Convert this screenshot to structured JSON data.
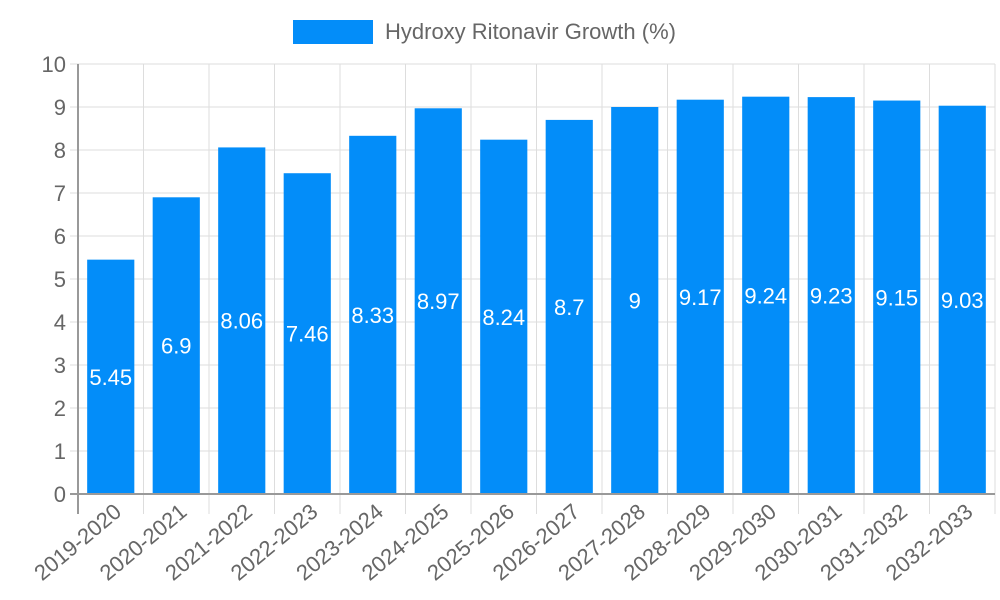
{
  "legend": {
    "label": "Hydroxy Ritonavir Growth (%)",
    "color": "#038df9"
  },
  "colors": {
    "bar": "#038df9",
    "grid": "#dddddd",
    "axis": "#999999",
    "tick_text": "#666666",
    "value_text": "#ffffff"
  },
  "chart_data": {
    "type": "bar",
    "title": "",
    "xlabel": "",
    "ylabel": "",
    "ylim": [
      0,
      10
    ],
    "y_ticks": [
      0,
      1,
      2,
      3,
      4,
      5,
      6,
      7,
      8,
      9,
      10
    ],
    "grid": true,
    "legend_position": "top",
    "categories": [
      "2019-2020",
      "2020-2021",
      "2021-2022",
      "2022-2023",
      "2023-2024",
      "2024-2025",
      "2025-2026",
      "2026-2027",
      "2027-2028",
      "2028-2029",
      "2029-2030",
      "2030-2031",
      "2031-2032",
      "2032-2033"
    ],
    "series": [
      {
        "name": "Hydroxy Ritonavir Growth (%)",
        "values": [
          5.45,
          6.9,
          8.06,
          7.46,
          8.33,
          8.97,
          8.24,
          8.7,
          9,
          9.17,
          9.24,
          9.23,
          9.15,
          9.03
        ]
      }
    ],
    "data_labels": [
      "5.45",
      "6.9",
      "8.06",
      "7.46",
      "8.33",
      "8.97",
      "8.24",
      "8.7",
      "9",
      "9.17",
      "9.24",
      "9.23",
      "9.15",
      "9.03"
    ]
  }
}
